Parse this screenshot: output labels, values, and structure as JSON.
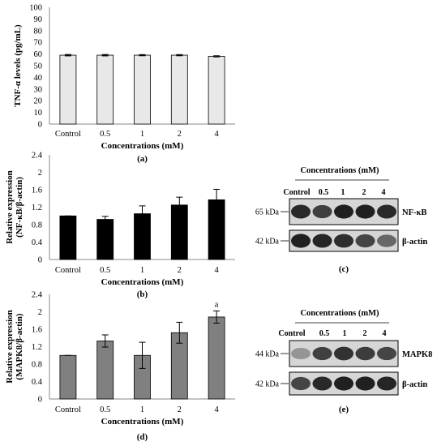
{
  "chart_data": [
    {
      "panel": "(a)",
      "type": "bar",
      "categories": [
        "Control",
        "0.5",
        "1",
        "2",
        "4"
      ],
      "values": [
        59,
        59,
        59,
        59,
        58
      ],
      "errors": [
        0.6,
        0.6,
        0.5,
        0.5,
        0.5
      ],
      "ylabel": "TNF-α levels (pg/mL)",
      "xlabel": "Concentrations (mM)",
      "ylim": [
        0,
        100
      ],
      "yticks": [
        "0",
        "10",
        "20",
        "30",
        "40",
        "50",
        "60",
        "70",
        "80",
        "90",
        "100"
      ],
      "bar_color": "#e8e8e8",
      "annotations": []
    },
    {
      "panel": "(b)",
      "type": "bar",
      "categories": [
        "Control",
        "0.5",
        "1",
        "2",
        "4"
      ],
      "values": [
        1.0,
        0.92,
        1.05,
        1.25,
        1.37
      ],
      "errors": [
        0.0,
        0.07,
        0.18,
        0.18,
        0.24
      ],
      "ylabel": "Relative expression (NF-κB/β-actin)",
      "ylabel_lines": [
        "Relative expression",
        "(NF-κB/β-actin)"
      ],
      "xlabel": "Concentrations (mM)",
      "ylim": [
        0,
        2.4
      ],
      "yticks": [
        "0",
        "0.4",
        "0.8",
        "1.2",
        "1.6",
        "2",
        "2.4"
      ],
      "bar_color": "#000000",
      "annotations": []
    },
    {
      "panel": "(d)",
      "type": "bar",
      "categories": [
        "Control",
        "0.5",
        "1",
        "2",
        "4"
      ],
      "values": [
        1.0,
        1.33,
        1.0,
        1.52,
        1.88
      ],
      "errors": [
        0.0,
        0.14,
        0.3,
        0.24,
        0.14
      ],
      "ylabel": "Relative expression (MAPK8/β-actin)",
      "ylabel_lines": [
        "Relative expression",
        "(MAPK8/β-actin)"
      ],
      "xlabel": "Concentrations (mM)",
      "ylim": [
        0,
        2.4
      ],
      "yticks": [
        "0",
        "0.4",
        "0.8",
        "1.2",
        "1.6",
        "2",
        "2.4"
      ],
      "bar_color": "#808080",
      "annotations": [
        {
          "category": "4",
          "text": "a"
        }
      ]
    }
  ],
  "blots": {
    "c": {
      "panel": "(c)",
      "header": "Concentrations (mM)",
      "lanes": [
        "Control",
        "0.5",
        "1",
        "2",
        "4"
      ],
      "bands": [
        {
          "kda": "65 kDa",
          "protein": "NF-κB",
          "intensities": [
            0.82,
            0.72,
            0.86,
            0.86,
            0.82
          ]
        },
        {
          "kda": "42 kDa",
          "protein": "β-actin",
          "intensities": [
            0.86,
            0.84,
            0.8,
            0.7,
            0.55
          ]
        }
      ]
    },
    "e": {
      "panel": "(e)",
      "header": "Concentrations (mM)",
      "lanes": [
        "Control",
        "0.5",
        "1",
        "2",
        "4"
      ],
      "bands": [
        {
          "kda": "44 kDa",
          "protein": "MAPK8",
          "intensities": [
            0.35,
            0.72,
            0.78,
            0.74,
            0.7
          ]
        },
        {
          "kda": "42 kDa",
          "protein": "β-actin",
          "intensities": [
            0.7,
            0.82,
            0.86,
            0.86,
            0.84
          ]
        }
      ]
    }
  }
}
